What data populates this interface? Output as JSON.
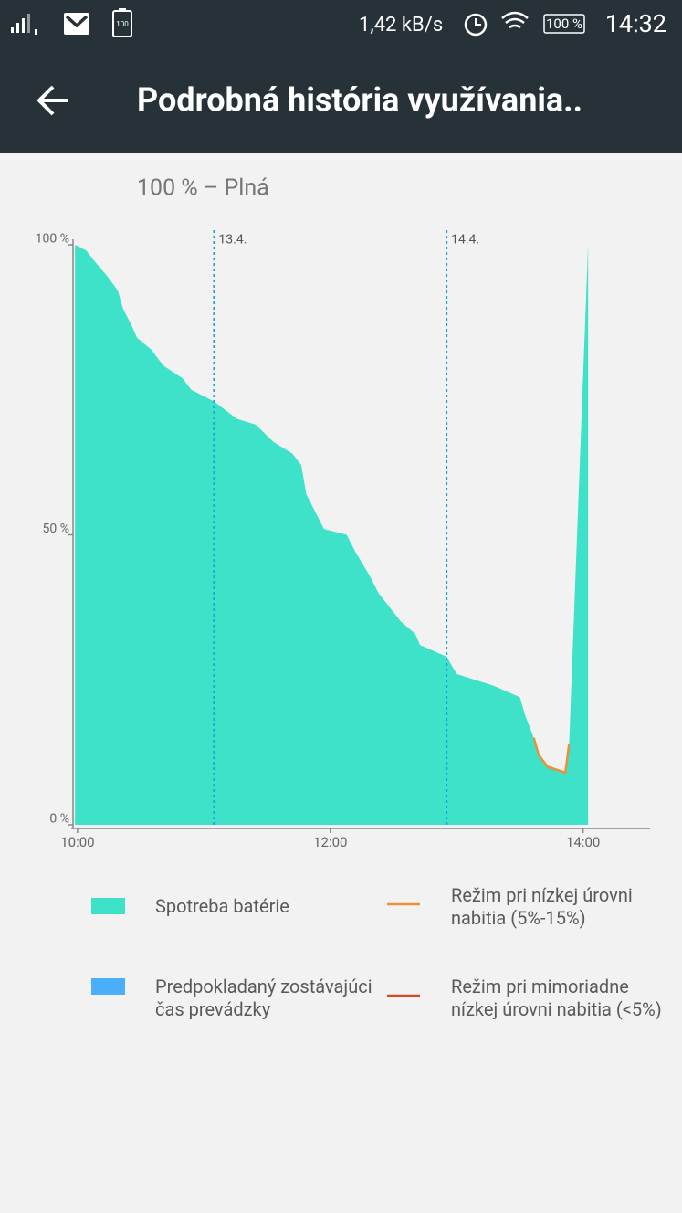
{
  "status_bar": {
    "battery_icon": "100",
    "speed": "1,42 kB/s",
    "battery": "100 %",
    "time": "14:32"
  },
  "app_bar": {
    "title": "Podrobná história využívania.."
  },
  "chart_data": {
    "type": "area",
    "title": "100 % – Plná",
    "x": [
      9.98,
      10.07,
      10.14,
      10.22,
      10.29,
      10.32,
      10.36,
      10.43,
      10.47,
      10.58,
      10.65,
      10.69,
      10.83,
      10.9,
      11.08,
      11.26,
      11.41,
      11.55,
      11.7,
      11.77,
      11.81,
      11.88,
      11.95,
      12.13,
      12.2,
      12.31,
      12.38,
      12.56,
      12.67,
      12.71,
      12.92,
      13.0,
      13.29,
      13.5,
      13.54,
      13.61,
      13.65,
      13.72,
      13.86,
      13.89,
      14.04
    ],
    "series": [
      {
        "name": "Spotreba batérie",
        "type": "area",
        "color": "#3ee2c9",
        "values": [
          100,
          99,
          97,
          95,
          93,
          92,
          89,
          86,
          84,
          82,
          80,
          79,
          77,
          75,
          73,
          70,
          69,
          66,
          64,
          62,
          57,
          54,
          51,
          50,
          47,
          43,
          40,
          35,
          33,
          31,
          29,
          26,
          24,
          22,
          19,
          15,
          12,
          10,
          9,
          14,
          100
        ]
      },
      {
        "name": "Režim pri nízkej úrovni nabitia (5%-15%)",
        "type": "line",
        "color": "#e8913a",
        "values": [
          null,
          null,
          null,
          null,
          null,
          null,
          null,
          null,
          null,
          null,
          null,
          null,
          null,
          null,
          null,
          null,
          null,
          null,
          null,
          null,
          null,
          null,
          null,
          null,
          null,
          null,
          null,
          null,
          null,
          null,
          null,
          null,
          null,
          null,
          null,
          15,
          12,
          10,
          9,
          14,
          null
        ]
      },
      {
        "name": "Predpokladaný zostávajúci čas prevádzky",
        "type": "area",
        "color": "#4aaefb",
        "values": [
          null,
          null,
          null,
          null,
          null,
          null,
          null,
          null,
          null,
          null,
          null,
          null,
          null,
          null,
          null,
          null,
          null,
          null,
          null,
          null,
          null,
          null,
          null,
          null,
          null,
          null,
          null,
          null,
          null,
          null,
          null,
          null,
          null,
          null,
          null,
          null,
          null,
          null,
          null,
          null,
          null
        ]
      },
      {
        "name": "Režim pri mimoriadne nízkej úrovni nabitia (<5%)",
        "type": "line",
        "color": "#d04a22",
        "values": [
          null,
          null,
          null,
          null,
          null,
          null,
          null,
          null,
          null,
          null,
          null,
          null,
          null,
          null,
          null,
          null,
          null,
          null,
          null,
          null,
          null,
          null,
          null,
          null,
          null,
          null,
          null,
          null,
          null,
          null,
          null,
          null,
          null,
          null,
          null,
          null,
          null,
          null,
          null,
          null,
          null
        ]
      }
    ],
    "markers": [
      {
        "x": 11.08,
        "label": "13.4."
      },
      {
        "x": 12.92,
        "label": "14.4."
      }
    ],
    "xlim": [
      9.95,
      14.53
    ],
    "xticks": [
      {
        "value": 10,
        "label": "10:00"
      },
      {
        "value": 12,
        "label": "12:00"
      },
      {
        "value": 14,
        "label": "14:00"
      }
    ],
    "ylim": [
      0,
      100
    ],
    "yticks": [
      {
        "value": 0,
        "label": "0 %"
      },
      {
        "value": 50,
        "label": "50 %"
      },
      {
        "value": 100,
        "label": "100 %"
      }
    ]
  }
}
